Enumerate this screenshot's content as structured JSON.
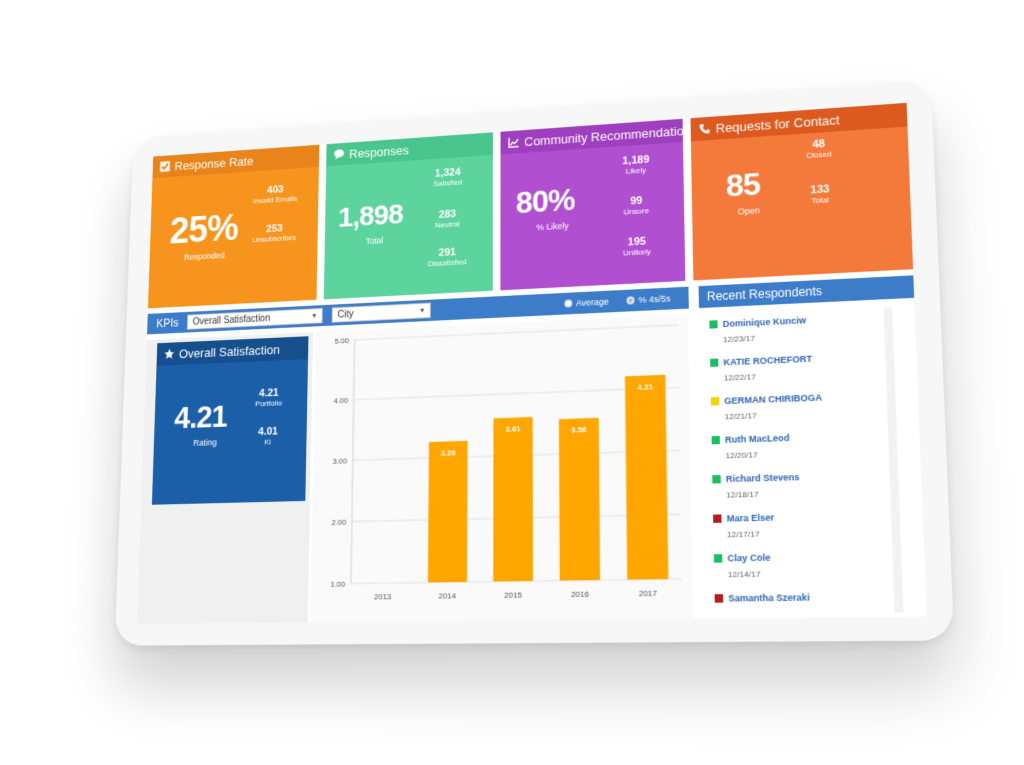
{
  "tiles": {
    "response_rate": {
      "title": "Response Rate",
      "color": "#f7941e",
      "head_color": "#e9841a",
      "big": "25%",
      "big_label": "Responded",
      "stats": [
        {
          "value": "403",
          "label": "Invalid Emails"
        },
        {
          "value": "253",
          "label": "Unsubscribes"
        }
      ]
    },
    "responses": {
      "title": "Responses",
      "color": "#5dd39e",
      "head_color": "#4bc58e",
      "big": "1,898",
      "big_label": "Total",
      "stats": [
        {
          "value": "1,324",
          "label": "Satisfied"
        },
        {
          "value": "283",
          "label": "Neutral"
        },
        {
          "value": "291",
          "label": "Dissatisfied"
        }
      ]
    },
    "community": {
      "title": "Community Recommendation",
      "color": "#b14fd1",
      "head_color": "#9e3fbe",
      "big": "80%",
      "big_label": "% Likely",
      "stats": [
        {
          "value": "1,189",
          "label": "Likely"
        },
        {
          "value": "99",
          "label": "Unsure"
        },
        {
          "value": "195",
          "label": "Unlikely"
        }
      ]
    },
    "contact": {
      "title": "Requests for Contact",
      "color": "#f47a3c",
      "head_color": "#dc5a1e",
      "big": "85",
      "big_label": "Open",
      "stats": [
        {
          "value": "48",
          "label": "Closed"
        },
        {
          "value": "133",
          "label": "Total"
        }
      ]
    }
  },
  "kpi_bar": {
    "label": "KPIs",
    "select1": "Overall Satisfaction",
    "select2": "City",
    "radio1": "Average",
    "radio2": "% 4s/5s"
  },
  "overall": {
    "title": "Overall Satisfaction",
    "rating": "4.21",
    "rating_label": "Rating",
    "stats": [
      {
        "value": "4.21",
        "label": "Portfolio"
      },
      {
        "value": "4.01",
        "label": "KI"
      }
    ]
  },
  "chart_data": {
    "type": "bar",
    "categories": [
      "2013",
      "2014",
      "2015",
      "2016",
      "2017"
    ],
    "values": [
      null,
      3.26,
      3.61,
      3.56,
      4.21
    ],
    "value_labels": [
      "",
      "3.26",
      "3.61",
      "3.56",
      "4.21"
    ],
    "y_ticks": [
      "1.00",
      "2.00",
      "3.00",
      "4.00",
      "5.00"
    ],
    "ylim": [
      1,
      5
    ],
    "bar_color": "#ffa600",
    "grid": true
  },
  "recent": {
    "title": "Recent Respondents",
    "items": [
      {
        "name": "Dominique Kunciw",
        "date": "12/23/17",
        "color": "#1bbf62"
      },
      {
        "name": "KATIE ROCHEFORT",
        "date": "12/22/17",
        "color": "#1bbf62"
      },
      {
        "name": "GERMAN CHIRIBOGA",
        "date": "12/21/17",
        "color": "#f2d400"
      },
      {
        "name": "Ruth MacLeod",
        "date": "12/20/17",
        "color": "#1bbf62"
      },
      {
        "name": "Richard Stevens",
        "date": "12/18/17",
        "color": "#1bbf62"
      },
      {
        "name": "Mara Elser",
        "date": "12/17/17",
        "color": "#b81d1d"
      },
      {
        "name": "Clay Cole",
        "date": "12/14/17",
        "color": "#1bbf62"
      },
      {
        "name": "Samantha Szeraki",
        "date": "",
        "color": "#b81d1d"
      }
    ]
  }
}
